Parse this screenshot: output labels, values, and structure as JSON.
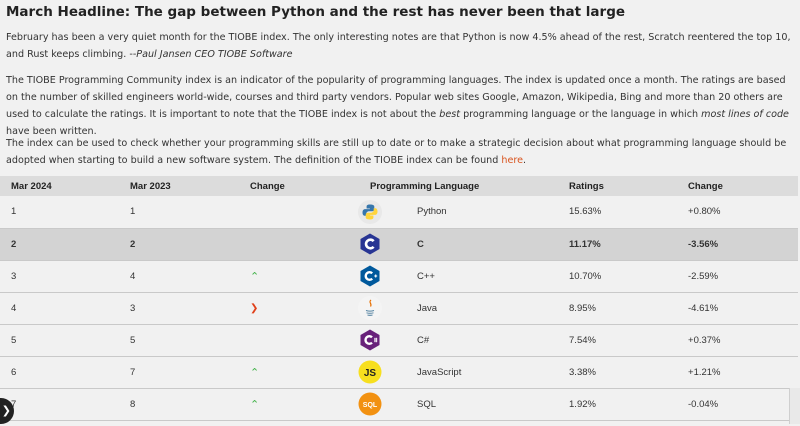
{
  "headline": "March Headline: The gap between Python and the rest has never been that large",
  "para1": {
    "text": "February has been a very quiet month for the TIOBE index. The only interesting notes are that Python is now 4.5% ahead of the rest, Scratch reentered the top 10, and Rust keeps climbing. --",
    "quote": "Paul Jansen CEO TIOBE Software"
  },
  "para2": {
    "before": "The TIOBE Programming Community index is an indicator of the popularity of programming languages. The index is updated once a month. The ratings are based on the number of skilled engineers world-wide, courses and third party vendors. Popular web sites Google, Amazon, Wikipedia, Bing and more than 20 others are used to calculate the ratings. It is important to note that the TIOBE index is not about the ",
    "em1": "best",
    "middle": " programming language or the language in which ",
    "em2": "most lines of code",
    "after": " have been written."
  },
  "para3": {
    "text": "The index can be used to check whether your programming skills are still up to date or to make a strategic decision about what programming language should be adopted when starting to build a new software system. The definition of the TIOBE index can be found ",
    "link": "here",
    "end": "."
  },
  "table": {
    "headers": [
      "Mar 2024",
      "Mar 2023",
      "Change",
      "Programming Language",
      "Ratings",
      "Change"
    ],
    "rows": [
      {
        "mar2024": "1",
        "mar2023": "1",
        "change": "",
        "language": "Python",
        "ratings": "15.63%",
        "delta": "+0.80%"
      },
      {
        "mar2024": "2",
        "mar2023": "2",
        "change": "",
        "language": "C",
        "ratings": "11.17%",
        "delta": "-3.56%"
      },
      {
        "mar2024": "3",
        "mar2023": "4",
        "change": "up",
        "language": "C++",
        "ratings": "10.70%",
        "delta": "-2.59%"
      },
      {
        "mar2024": "4",
        "mar2023": "3",
        "change": "down",
        "language": "Java",
        "ratings": "8.95%",
        "delta": "-4.61%"
      },
      {
        "mar2024": "5",
        "mar2023": "5",
        "change": "",
        "language": "C#",
        "ratings": "7.54%",
        "delta": "+0.37%"
      },
      {
        "mar2024": "6",
        "mar2023": "7",
        "change": "up",
        "language": "JavaScript",
        "ratings": "3.38%",
        "delta": "+1.21%"
      },
      {
        "mar2024": "7",
        "mar2023": "8",
        "change": "up",
        "language": "SQL",
        "ratings": "1.92%",
        "delta": "-0.04%"
      }
    ]
  },
  "logos": {
    "js": "JS",
    "sql": "SQL"
  },
  "icons": {
    "up": "chevron-up-icon",
    "down": "chevron-down-icon",
    "up_color": "#44b34b",
    "down_color": "#e0401a"
  },
  "colors": {
    "link": "#d9541e",
    "header_bg": "#dcdcdc",
    "highlight_row": "#d3d3d3",
    "python_blue": "#3776ab",
    "python_yellow": "#ffd43b",
    "c_blue": "#283593",
    "cpp_blue": "#00599c",
    "csharp_purple": "#68217a",
    "js_yellow": "#f7df1e",
    "sql_orange": "#f29111"
  }
}
